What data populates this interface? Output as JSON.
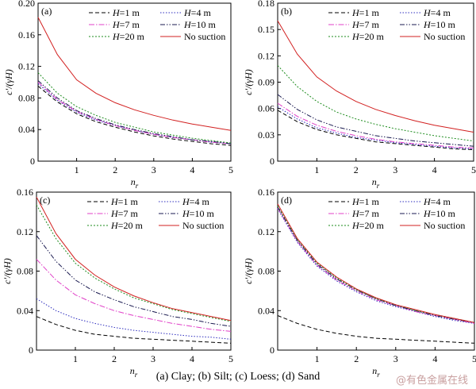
{
  "caption": "(a) Clay; (b) Silt; (c) Loess; (d) Sand",
  "watermark": "@有色金属在线",
  "series_styles": [
    {
      "name": "H=1 m",
      "color": "#000000",
      "dash": "5,3"
    },
    {
      "name": "H=4 m",
      "color": "#2d2dbe",
      "dash": "1.5,2"
    },
    {
      "name": "H=7 m",
      "color": "#e040c8",
      "dash": "7,2,1.5,2"
    },
    {
      "name": "H=10 m",
      "color": "#1a1a50",
      "dash": "6,2,1.5,2,1.5,2"
    },
    {
      "name": "H=20 m",
      "color": "#1e8c1e",
      "dash": "2,2"
    },
    {
      "name": "No suction",
      "color": "#d22020",
      "dash": ""
    }
  ],
  "chart_data": [
    {
      "type": "line",
      "panel": "(a)",
      "xlabel": "n_r",
      "ylabel": "c'/(γH)",
      "xlim": [
        0,
        5
      ],
      "ylim": [
        0,
        0.2
      ],
      "xticks": [
        "1",
        "2",
        "3",
        "4",
        "5"
      ],
      "yticks": [
        "0",
        "0.04",
        "0.08",
        "0.12",
        "0.16",
        "0.20"
      ],
      "x": [
        0,
        0.5,
        1,
        1.5,
        2,
        2.5,
        3,
        3.5,
        4,
        4.5,
        5
      ],
      "series": [
        {
          "name": "H=1 m",
          "values": [
            0.095,
            0.075,
            0.06,
            0.05,
            0.043,
            0.037,
            0.032,
            0.028,
            0.025,
            0.022,
            0.02
          ]
        },
        {
          "name": "H=4 m",
          "values": [
            0.098,
            0.077,
            0.062,
            0.052,
            0.045,
            0.039,
            0.034,
            0.03,
            0.027,
            0.024,
            0.022
          ]
        },
        {
          "name": "H=7 m",
          "values": [
            0.1,
            0.078,
            0.063,
            0.053,
            0.045,
            0.039,
            0.034,
            0.03,
            0.027,
            0.024,
            0.022
          ]
        },
        {
          "name": "H=10 m",
          "values": [
            0.102,
            0.08,
            0.064,
            0.054,
            0.046,
            0.04,
            0.035,
            0.031,
            0.027,
            0.025,
            0.022
          ]
        },
        {
          "name": "H=20 m",
          "values": [
            0.112,
            0.086,
            0.069,
            0.058,
            0.049,
            0.043,
            0.037,
            0.033,
            0.029,
            0.026,
            0.023
          ]
        },
        {
          "name": "No suction",
          "values": [
            0.182,
            0.135,
            0.103,
            0.086,
            0.074,
            0.065,
            0.058,
            0.052,
            0.047,
            0.043,
            0.039
          ]
        }
      ]
    },
    {
      "type": "line",
      "panel": "(b)",
      "xlabel": "n_r",
      "ylabel": "c'/(γH)",
      "xlim": [
        0,
        5
      ],
      "ylim": [
        0,
        0.18
      ],
      "xticks": [
        "1",
        "2",
        "3",
        "4",
        "5"
      ],
      "yticks": [
        "0",
        "0.03",
        "0.06",
        "0.09",
        "0.12",
        "0.15",
        "0.18"
      ],
      "x": [
        0,
        0.5,
        1,
        1.5,
        2,
        2.5,
        3,
        3.5,
        4,
        4.5,
        5
      ],
      "series": [
        {
          "name": "H=1 m",
          "values": [
            0.058,
            0.045,
            0.036,
            0.03,
            0.026,
            0.022,
            0.02,
            0.018,
            0.016,
            0.014,
            0.013
          ]
        },
        {
          "name": "H=4 m",
          "values": [
            0.062,
            0.048,
            0.038,
            0.032,
            0.027,
            0.024,
            0.021,
            0.019,
            0.017,
            0.015,
            0.014
          ]
        },
        {
          "name": "H=7 m",
          "values": [
            0.066,
            0.051,
            0.041,
            0.034,
            0.029,
            0.025,
            0.022,
            0.02,
            0.018,
            0.016,
            0.015
          ]
        },
        {
          "name": "H=10 m",
          "values": [
            0.076,
            0.059,
            0.047,
            0.039,
            0.034,
            0.029,
            0.026,
            0.023,
            0.021,
            0.019,
            0.017
          ]
        },
        {
          "name": "H=20 m",
          "values": [
            0.109,
            0.085,
            0.068,
            0.056,
            0.048,
            0.042,
            0.037,
            0.033,
            0.029,
            0.026,
            0.023
          ]
        },
        {
          "name": "No suction",
          "values": [
            0.16,
            0.122,
            0.096,
            0.08,
            0.068,
            0.059,
            0.052,
            0.046,
            0.041,
            0.037,
            0.033
          ]
        }
      ]
    },
    {
      "type": "line",
      "panel": "(c)",
      "xlabel": "n_r",
      "ylabel": "c'/(γH)",
      "xlim": [
        0,
        5
      ],
      "ylim": [
        0,
        0.16
      ],
      "xticks": [
        "1",
        "2",
        "3",
        "4",
        "5"
      ],
      "yticks": [
        "0",
        "0.04",
        "0.08",
        "0.12",
        "0.16"
      ],
      "x": [
        0,
        0.5,
        1,
        1.5,
        2,
        2.5,
        3,
        3.5,
        4,
        4.5,
        5
      ],
      "series": [
        {
          "name": "H=1 m",
          "values": [
            0.034,
            0.026,
            0.02,
            0.016,
            0.014,
            0.012,
            0.011,
            0.01,
            0.009,
            0.008,
            0.007
          ]
        },
        {
          "name": "H=4 m",
          "values": [
            0.052,
            0.04,
            0.032,
            0.027,
            0.023,
            0.02,
            0.018,
            0.016,
            0.014,
            0.013,
            0.011
          ]
        },
        {
          "name": "H=7 m",
          "values": [
            0.092,
            0.071,
            0.056,
            0.047,
            0.04,
            0.035,
            0.031,
            0.027,
            0.024,
            0.021,
            0.019
          ]
        },
        {
          "name": "H=10 m",
          "values": [
            0.116,
            0.09,
            0.071,
            0.059,
            0.051,
            0.044,
            0.039,
            0.034,
            0.031,
            0.027,
            0.024
          ]
        },
        {
          "name": "H=20 m",
          "values": [
            0.147,
            0.113,
            0.088,
            0.073,
            0.062,
            0.053,
            0.047,
            0.041,
            0.037,
            0.033,
            0.029
          ]
        },
        {
          "name": "No suction",
          "values": [
            0.155,
            0.118,
            0.092,
            0.076,
            0.064,
            0.055,
            0.048,
            0.042,
            0.038,
            0.034,
            0.03
          ]
        }
      ]
    },
    {
      "type": "line",
      "panel": "(d)",
      "xlabel": "n_r",
      "ylabel": "c'/(γH)",
      "xlim": [
        0,
        5
      ],
      "ylim": [
        0,
        0.16
      ],
      "xticks": [
        "1",
        "2",
        "3",
        "4",
        "5"
      ],
      "yticks": [
        "0",
        "0.04",
        "0.08",
        "0.12",
        "0.16"
      ],
      "x": [
        0,
        0.5,
        1,
        1.5,
        2,
        2.5,
        3,
        3.5,
        4,
        4.5,
        5
      ],
      "series": [
        {
          "name": "H=1 m",
          "values": [
            0.035,
            0.027,
            0.021,
            0.017,
            0.014,
            0.012,
            0.011,
            0.01,
            0.009,
            0.008,
            0.007
          ]
        },
        {
          "name": "H=4 m",
          "values": [
            0.143,
            0.109,
            0.085,
            0.07,
            0.059,
            0.05,
            0.044,
            0.039,
            0.034,
            0.03,
            0.027
          ]
        },
        {
          "name": "H=7 m",
          "values": [
            0.144,
            0.11,
            0.086,
            0.071,
            0.06,
            0.051,
            0.045,
            0.039,
            0.035,
            0.031,
            0.027
          ]
        },
        {
          "name": "H=10 m",
          "values": [
            0.145,
            0.111,
            0.087,
            0.072,
            0.061,
            0.052,
            0.045,
            0.04,
            0.035,
            0.031,
            0.028
          ]
        },
        {
          "name": "H=20 m",
          "values": [
            0.146,
            0.112,
            0.088,
            0.073,
            0.061,
            0.052,
            0.046,
            0.04,
            0.036,
            0.032,
            0.028
          ]
        },
        {
          "name": "No suction",
          "values": [
            0.148,
            0.113,
            0.089,
            0.074,
            0.062,
            0.053,
            0.046,
            0.041,
            0.036,
            0.032,
            0.028
          ]
        }
      ]
    }
  ]
}
